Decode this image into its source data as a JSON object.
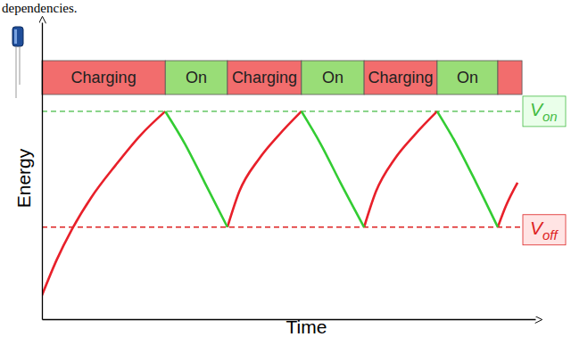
{
  "chart_data": {
    "type": "line",
    "caption": "dependencies.",
    "x_label": "Time",
    "y_label": "Energy",
    "xlim": [
      0,
      100
    ],
    "ylim": [
      0,
      100
    ],
    "xticks": [],
    "yticks": [],
    "tick_labels": false,
    "grid": false,
    "x": [
      0,
      3,
      6,
      10,
      15,
      20,
      25,
      29,
      33,
      37.6,
      40,
      44,
      48,
      52.6,
      56.5,
      60.5,
      65.3,
      67.7,
      71.5,
      75.5,
      80.1,
      84,
      88,
      92.4,
      94,
      96.4
    ],
    "series": [
      {
        "color": "#e8202a",
        "values": [
          8,
          20,
          30,
          41,
          52,
          62,
          70,
          null,
          null,
          31,
          43,
          54,
          62,
          70,
          null,
          null,
          31,
          43,
          54,
          62,
          70,
          null,
          null,
          31,
          38,
          46
        ]
      },
      {
        "color": "#33cc33",
        "values": [
          null,
          null,
          null,
          null,
          null,
          null,
          70,
          59,
          46,
          31,
          null,
          null,
          null,
          70,
          59,
          46,
          31,
          null,
          null,
          null,
          70,
          59,
          46,
          31,
          null,
          null
        ]
      }
    ],
    "phases": [
      {
        "label": "Charging",
        "start": 0,
        "end": 25,
        "color": "#f26d6d"
      },
      {
        "label": "On",
        "start": 25,
        "end": 37.6,
        "color": "#99dd77"
      },
      {
        "label": "Charging",
        "start": 37.6,
        "end": 52.6,
        "color": "#f26d6d"
      },
      {
        "label": "On",
        "start": 52.6,
        "end": 65.3,
        "color": "#99dd77"
      },
      {
        "label": "Charging",
        "start": 65.3,
        "end": 80.1,
        "color": "#f26d6d"
      },
      {
        "label": "On",
        "start": 80.1,
        "end": 92.4,
        "color": "#99dd77"
      },
      {
        "label": null,
        "start": 92.4,
        "end": 97.3,
        "color": "#f26d6d"
      }
    ],
    "annotations": [
      {
        "text": "V",
        "subscript": "on",
        "y": 70,
        "color": "#44bb44",
        "fill": "#eaffea"
      },
      {
        "text": "V",
        "subscript": "off",
        "y": 31,
        "color": "#dd2222",
        "fill": "#ffe4e4"
      }
    ]
  }
}
